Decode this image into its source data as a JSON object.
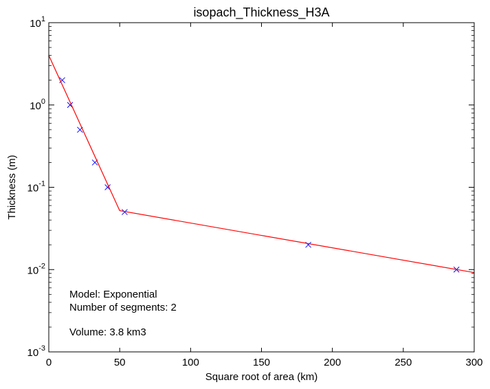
{
  "chart_data": {
    "type": "line",
    "title": "isopach_Thickness_H3A",
    "xlabel": "Square root of area (km)",
    "ylabel": "Thickness (m)",
    "xlim": [
      0,
      300
    ],
    "ylim": [
      0.001,
      10
    ],
    "yscale": "log",
    "grid": false,
    "x_ticks": [
      {
        "value": 0,
        "label": "0"
      },
      {
        "value": 50,
        "label": "50"
      },
      {
        "value": 100,
        "label": "100"
      },
      {
        "value": 150,
        "label": "150"
      },
      {
        "value": 200,
        "label": "200"
      },
      {
        "value": 250,
        "label": "250"
      },
      {
        "value": 300,
        "label": "300"
      }
    ],
    "y_ticks": [
      {
        "value": 0.001,
        "base": "10",
        "exp": "-3"
      },
      {
        "value": 0.01,
        "base": "10",
        "exp": "-2"
      },
      {
        "value": 0.1,
        "base": "10",
        "exp": "-1"
      },
      {
        "value": 1,
        "base": "10",
        "exp": "0"
      },
      {
        "value": 10,
        "base": "10",
        "exp": "1"
      }
    ],
    "series": [
      {
        "marker": "x",
        "color": "#0000ff",
        "x": [
          9.5,
          15,
          22,
          32.5,
          41.5,
          53.5,
          183,
          287.5
        ],
        "y": [
          2,
          1,
          0.5,
          0.2,
          0.1,
          0.05,
          0.02,
          0.01
        ]
      },
      {
        "line": true,
        "color": "#ff0000",
        "x": [
          0,
          50,
          300
        ],
        "y": [
          4.0,
          0.052,
          0.0092
        ]
      }
    ],
    "annotations": [
      "Model: Exponential",
      "Number of segments: 2",
      "Volume: 3.8 km3"
    ]
  }
}
